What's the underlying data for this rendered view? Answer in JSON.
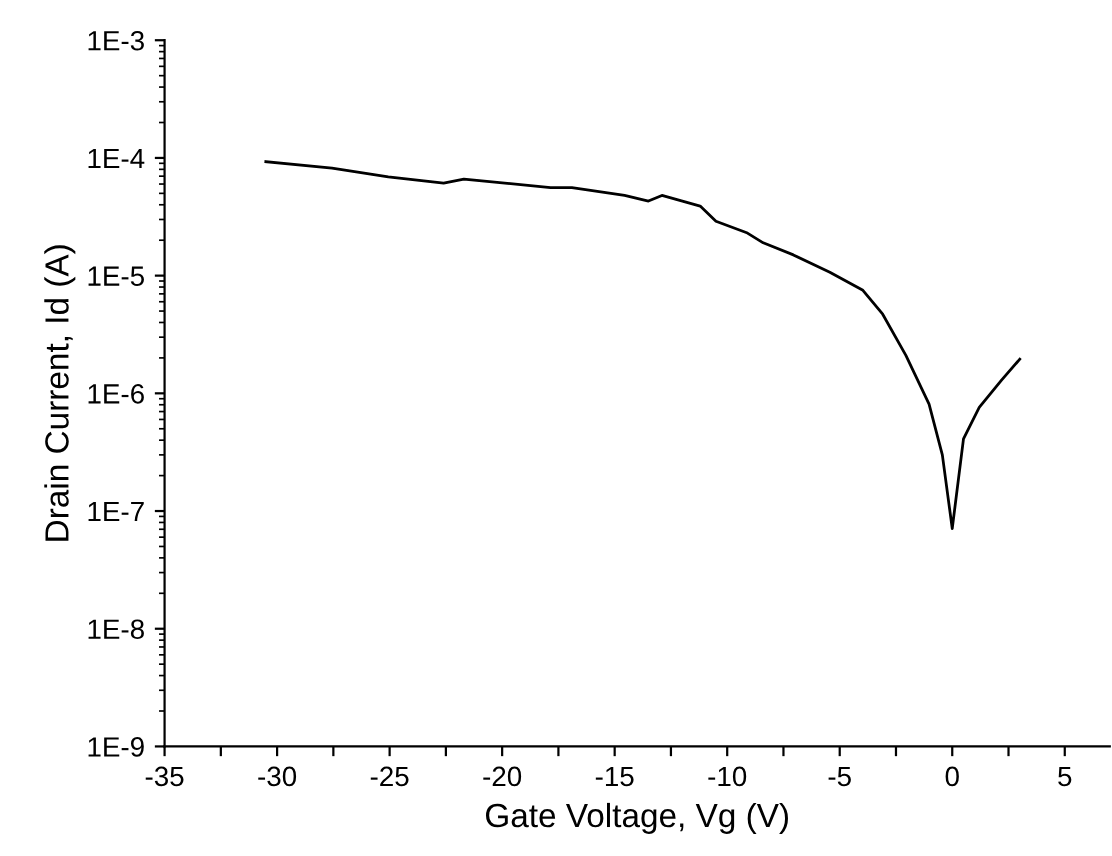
{
  "chart_data": {
    "type": "line",
    "xlabel": "Gate Voltage, Vg (V)",
    "ylabel": "Drain Current, Id (A)",
    "log": "y",
    "grid": false,
    "legend": false,
    "marker": "none",
    "line_style": "solid",
    "xlim": [
      -35,
      7
    ],
    "ylim": [
      1e-09,
      0.001
    ],
    "xticks": [
      -35,
      {
        "value": -32.5,
        "label": null
      },
      -30,
      {
        "value": -27.5,
        "label": null
      },
      -25,
      {
        "value": -22.5,
        "label": null
      },
      -20,
      {
        "value": -17.5,
        "label": null
      },
      -15,
      {
        "value": -12.5,
        "label": null
      },
      -10,
      {
        "value": -7.5,
        "label": null
      },
      -5,
      {
        "value": -2.5,
        "label": null
      },
      0,
      {
        "value": 2.5,
        "label": null
      },
      5
    ],
    "yticks": [
      {
        "value": 1e-09,
        "label": "1E-9"
      },
      {
        "value": 1e-08,
        "label": "1E-8"
      },
      {
        "value": 1e-07,
        "label": "1E-7"
      },
      {
        "value": 1e-06,
        "label": "1E-6"
      },
      {
        "value": 1e-05,
        "label": "1E-5"
      },
      {
        "value": 0.0001,
        "label": "1E-4"
      },
      {
        "value": 0.001,
        "label": "1E-3"
      }
    ],
    "series": [
      {
        "color": "#000000",
        "x": [
          -30.5,
          -27.56,
          -25.06,
          -22.6,
          -21.7,
          -17.85,
          -16.9,
          -14.56,
          -13.5,
          -12.9,
          -11.2,
          -10.5,
          -9.1,
          -8.4,
          -7.06,
          -5.44,
          -3.97,
          -3.09,
          -2.06,
          -1.03,
          -0.44,
          0.0,
          0.5,
          1.2,
          2.2,
          3.0
        ],
        "values": [
          9.3e-05,
          8.2e-05,
          6.9e-05,
          6.1e-05,
          6.6e-05,
          5.6e-05,
          5.6e-05,
          4.8e-05,
          4.3e-05,
          4.8e-05,
          3.9e-05,
          2.9e-05,
          2.3e-05,
          1.9e-05,
          1.5e-05,
          1.07e-05,
          7.5e-06,
          4.7e-06,
          2.1e-06,
          8.1e-07,
          3e-07,
          7.1e-08,
          4.1e-07,
          7.6e-07,
          1.3e-06,
          1.95e-06
        ]
      }
    ]
  }
}
